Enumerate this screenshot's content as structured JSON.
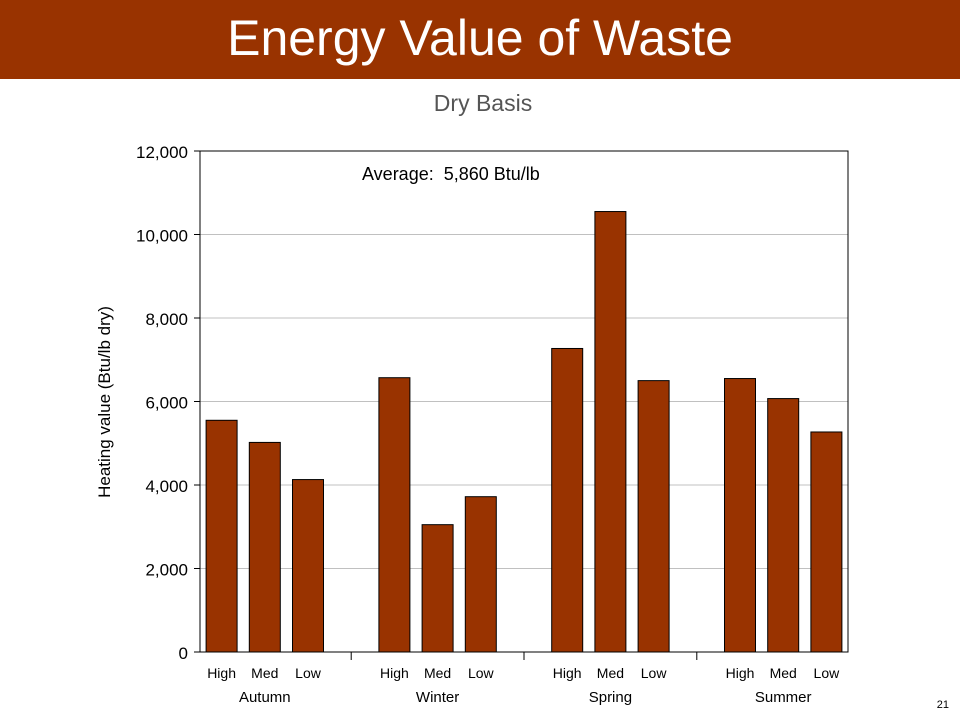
{
  "slide": {
    "title": "Energy Value of Waste",
    "subtitle": "Dry Basis",
    "page_number": "21"
  },
  "colors": {
    "title_bar": "#993300",
    "bar_fill": "#993300",
    "bar_stroke": "#000000",
    "gridline": "#c0c0c0"
  },
  "chart_data": {
    "type": "bar",
    "ylabel": "Heating value (Btu/lb dry)",
    "xlabel": "",
    "ylim": [
      0,
      12000
    ],
    "yticks": [
      0,
      2000,
      4000,
      6000,
      8000,
      10000,
      12000
    ],
    "ytick_labels": [
      "0",
      "2,000",
      "4,000",
      "6,000",
      "8,000",
      "10,000",
      "12,000"
    ],
    "grid": true,
    "annotation": "Average:  5,860 Btu/lb",
    "groups": [
      {
        "name": "Autumn",
        "categories": [
          "High",
          "Med",
          "Low"
        ],
        "values": [
          5550,
          5020,
          4130
        ]
      },
      {
        "name": "Winter",
        "categories": [
          "High",
          "Med",
          "Low"
        ],
        "values": [
          6570,
          3050,
          3720
        ]
      },
      {
        "name": "Spring",
        "categories": [
          "High",
          "Med",
          "Low"
        ],
        "values": [
          7270,
          10550,
          6500
        ]
      },
      {
        "name": "Summer",
        "categories": [
          "High",
          "Med",
          "Low"
        ],
        "values": [
          6550,
          6070,
          5270
        ]
      }
    ]
  }
}
